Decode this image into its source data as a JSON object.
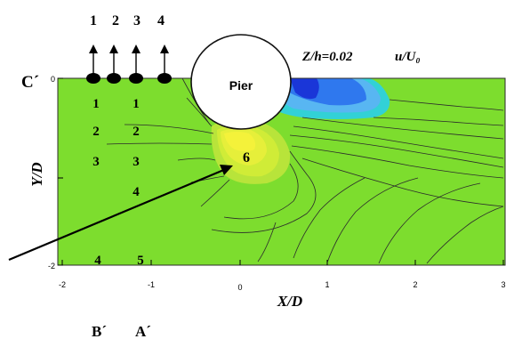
{
  "title": {
    "params": "Z/h=0.02",
    "variable": "u/U₀"
  },
  "plane_label": "C´",
  "pier_label": "Pier",
  "x_axis": {
    "label": "X/D",
    "ticks": [
      "-2",
      "-1",
      "0",
      "1",
      "2",
      "3"
    ]
  },
  "y_axis": {
    "label": "Y/D",
    "ticks": [
      "0",
      "-2"
    ]
  },
  "top_markers": [
    "1",
    "2",
    "3",
    "4"
  ],
  "zone_labels": {
    "col1": [
      "1",
      "2",
      "3",
      "4"
    ],
    "col2": [
      "1",
      "2",
      "3",
      "4",
      "5"
    ],
    "center": "6"
  },
  "section_labels": [
    "B´",
    "A´"
  ],
  "colors": {
    "background_field": "#7ddd2e",
    "low_deep": "#1a36d8",
    "low_mid": "#2f78ee",
    "low_light": "#58b6f2",
    "cyan": "#32d1d6",
    "high_light": "#d0ec37",
    "high_yellow": "#f4f23a",
    "contour_line": "#2c2c2c"
  }
}
